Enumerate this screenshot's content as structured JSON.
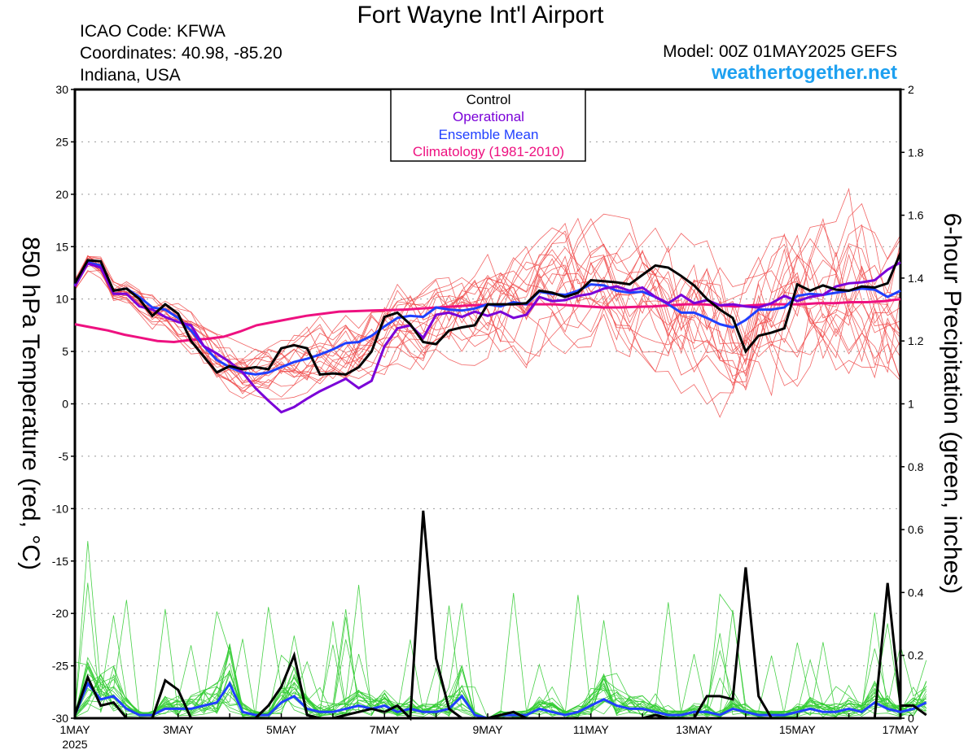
{
  "header": {
    "title": "Fort Wayne Int'l Airport",
    "icao": "ICAO Code: KFWA",
    "coordinates": "Coordinates: 40.98, -85.20",
    "region": "Indiana, USA",
    "model": "Model: 00Z 01MAY2025 GEFS",
    "brand": "weathertogether.net"
  },
  "colors": {
    "control": "#000000",
    "operational": "#7a00d8",
    "ensemble_mean": "#1f3fff",
    "climatology": "#ee1180",
    "members_temp": "#f04a4a",
    "members_precip": "#33cc33",
    "grid": "#999999"
  },
  "chart_data": {
    "type": "line",
    "xlabel_year": "2025",
    "x_ticks": [
      "1MAY",
      "3MAY",
      "5MAY",
      "7MAY",
      "9MAY",
      "11MAY",
      "13MAY",
      "15MAY",
      "17MAY"
    ],
    "x_range_days": [
      0,
      16
    ],
    "step_hours": 6,
    "y_left": {
      "label": "850 hPa Temperature (red, °C)",
      "ticks": [
        30,
        25,
        20,
        15,
        10,
        5,
        0,
        -5,
        -10,
        -15,
        -20,
        -25,
        -30
      ],
      "range": [
        -30,
        30
      ]
    },
    "y_right": {
      "label": "6-hour Precipitation (green, inches)",
      "ticks": [
        2,
        1.8,
        1.6,
        1.4,
        1.2,
        1,
        0.8,
        0.6,
        0.4,
        0.2,
        0
      ],
      "range": [
        0,
        2
      ]
    },
    "grid": true,
    "legend": {
      "position": "top-center",
      "entries": [
        {
          "key": "control",
          "label": "Control"
        },
        {
          "key": "operational",
          "label": "Operational"
        },
        {
          "key": "ensemble_mean",
          "label": "Ensemble Mean"
        },
        {
          "key": "climatology",
          "label": "Climatology (1981-2010)"
        }
      ]
    },
    "series": {
      "control_temp": [
        11.5,
        13.7,
        13.6,
        10.8,
        11,
        10,
        8.4,
        9.5,
        8.6,
        6,
        4.5,
        3,
        3.6,
        3.3,
        3.5,
        3.3,
        5.3,
        5.6,
        5.3,
        2.8,
        2.9,
        2.8,
        3.5,
        5,
        8.3,
        8.7,
        7.6,
        5.9,
        5.7,
        7,
        7.3,
        7.5,
        9.5,
        9.5,
        9.5,
        9.6,
        10.8,
        10.6,
        10.2,
        10.6,
        11.8,
        11.7,
        11.6,
        11.4,
        12.3,
        13.2,
        13,
        12.2,
        11.3,
        10,
        9,
        8.2,
        5,
        6.5,
        6.8,
        7.2,
        11.4,
        10.8,
        11.3,
        10.9,
        10.8,
        11.2,
        11.1,
        11.5,
        14.4
      ],
      "operational_temp": [
        11.2,
        13.4,
        13,
        10.5,
        10.5,
        9.3,
        9,
        8.3,
        7.8,
        7.5,
        5.5,
        4.8,
        4,
        3,
        1.5,
        0.3,
        -0.8,
        -0.3,
        0.5,
        1.2,
        1.8,
        2.4,
        1.5,
        2.2,
        5.5,
        7.2,
        7.5,
        6.3,
        8.5,
        8.7,
        8.3,
        8.8,
        8.4,
        8.8,
        8.2,
        8.5,
        10.2,
        9.8,
        9.9,
        10.3,
        10.5,
        11,
        11.2,
        10.8,
        11.1,
        10.2,
        9.6,
        10.4,
        9.6,
        9.9,
        9.4,
        9.5,
        9.3,
        9.2,
        9.6,
        10.3,
        9.8,
        10.2,
        10.4,
        11.2,
        11.5,
        11.6,
        11.8,
        12.8,
        13.5
      ],
      "ensemble_mean_temp": [
        11.3,
        13.5,
        13.2,
        10.8,
        11,
        10.2,
        9.2,
        9,
        8.2,
        7,
        5.5,
        4.2,
        3.5,
        3,
        2.8,
        3,
        3.5,
        4,
        4.3,
        4.7,
        5.2,
        5.8,
        5.9,
        6.5,
        7.4,
        8.2,
        8.4,
        8.3,
        9.2,
        9,
        8.9,
        9.1,
        9.5,
        9.3,
        9.7,
        9.5,
        10.7,
        10.5,
        10.4,
        10.8,
        11.4,
        11.3,
        10.8,
        10.6,
        10.7,
        10.2,
        9.5,
        8.7,
        8.7,
        8.2,
        7.6,
        7.3,
        8,
        9,
        9,
        9.2,
        10.3,
        10.5,
        10.4,
        10.6,
        10.8,
        11,
        10.9,
        10.2,
        10.8
      ],
      "climatology_temp": [
        7.6,
        7.3,
        7,
        6.6,
        6.3,
        6,
        5.9,
        6.1,
        6.2,
        6.4,
        6.9,
        7.5,
        7.8,
        8.1,
        8.4,
        8.6,
        8.8,
        8.85,
        8.9,
        8.95,
        9,
        9.1,
        9.2,
        9.3,
        9.4,
        9.45,
        9.5,
        9.5,
        9.5,
        9.5,
        9.4,
        9.3,
        9.2,
        9.2,
        9.25,
        9.3,
        9.4,
        9.5,
        9.5,
        9.4,
        9.3,
        9.4,
        9.5,
        9.5,
        9.5,
        9.6,
        9.6,
        9.7,
        9.7,
        9.8,
        10
      ],
      "control_precip": [
        0.01,
        0.13,
        0.04,
        0.05,
        0,
        0,
        0,
        0.12,
        0.09,
        0,
        0,
        0,
        0,
        0,
        0,
        0.04,
        0.1,
        0.2,
        0.01,
        0,
        0,
        0.01,
        0.02,
        0.03,
        0.02,
        0.04,
        0,
        0.66,
        0.19,
        0.03,
        0,
        0,
        0,
        0.01,
        0.02,
        0,
        0,
        0,
        0,
        0,
        0,
        0,
        0,
        0,
        0,
        0.01,
        0,
        0,
        0,
        0.07,
        0.07,
        0.06,
        0.48,
        0.07,
        0,
        0,
        0,
        0,
        0,
        0,
        0,
        0,
        0,
        0.43,
        0.04,
        0.04,
        0.01
      ],
      "ensemble_mean_precip": [
        0.01,
        0.11,
        0.06,
        0.07,
        0.03,
        0.01,
        0.01,
        0.03,
        0.03,
        0.03,
        0.04,
        0.05,
        0.11,
        0.02,
        0.01,
        0.01,
        0.05,
        0.07,
        0.03,
        0.02,
        0.02,
        0.03,
        0.04,
        0.03,
        0.04,
        0.02,
        0.03,
        0.02,
        0.02,
        0.03,
        0.07,
        0.01,
        0,
        0.01,
        0.01,
        0.01,
        0.03,
        0.02,
        0.01,
        0.02,
        0.04,
        0.06,
        0.04,
        0.03,
        0.03,
        0.02,
        0.01,
        0.01,
        0.02,
        0.02,
        0.01,
        0.03,
        0.02,
        0.01,
        0.01,
        0.01,
        0.02,
        0.03,
        0.02,
        0.02,
        0.03,
        0.02,
        0.05,
        0.03,
        0.02,
        0.03,
        0.05
      ]
    }
  }
}
